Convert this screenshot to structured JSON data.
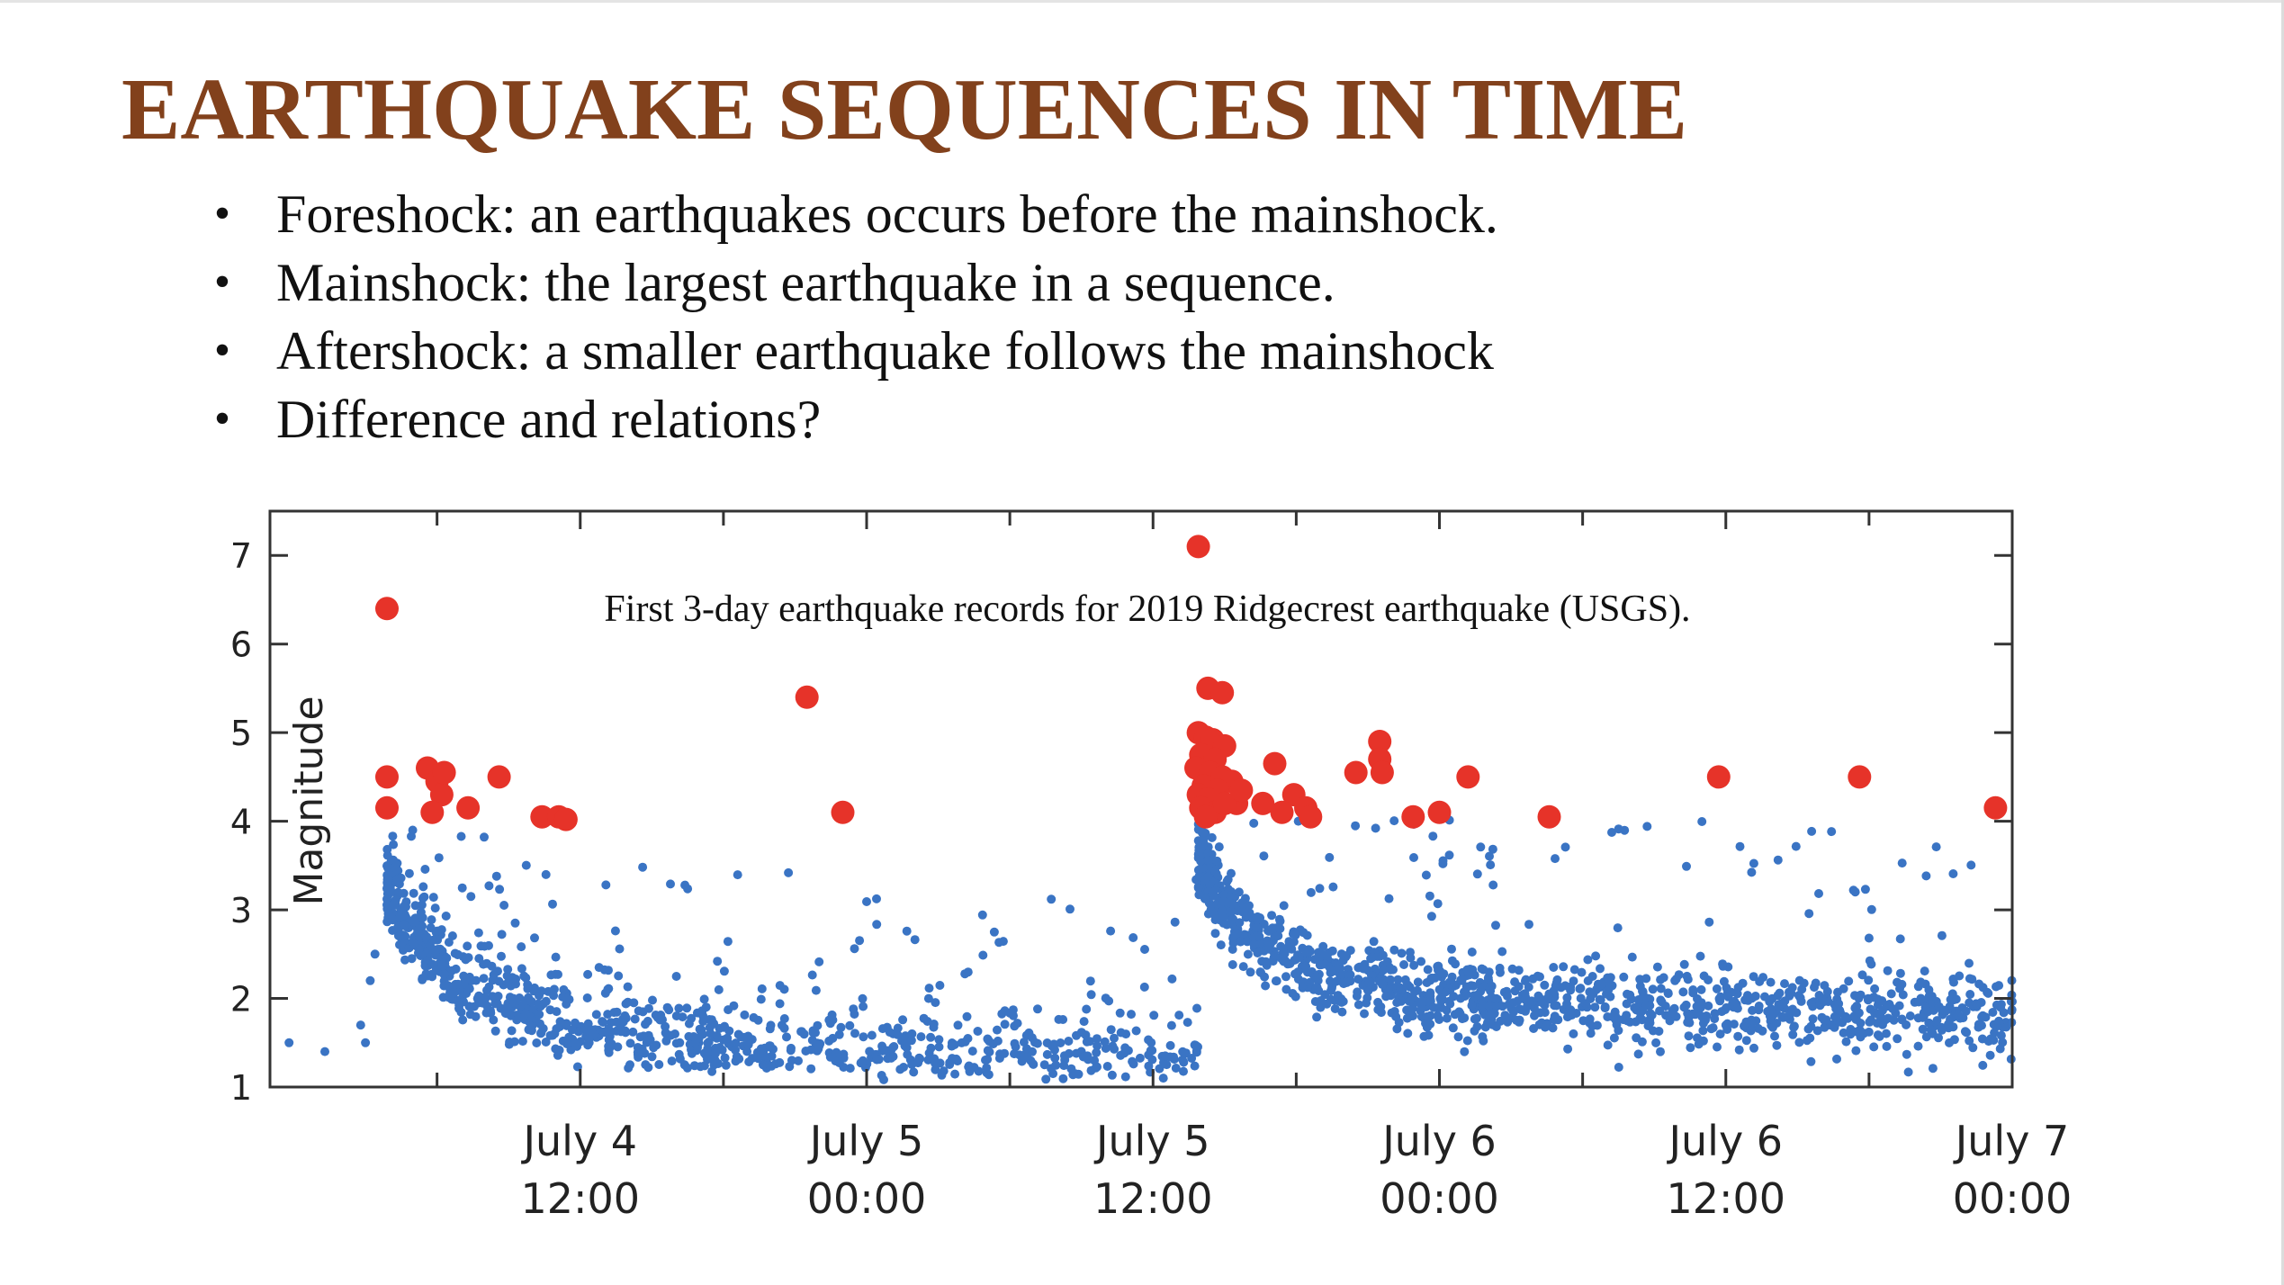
{
  "slide": {
    "title": "EARTHQUAKE SEQUENCES IN TIME",
    "bullets": [
      "Foreshock: an earthquakes occurs before the mainshock.",
      "Mainshock: the largest earthquake in a sequence.",
      "Aftershock: a smaller earthquake follows the mainshock",
      "Difference and relations?"
    ],
    "bullet_symbol": "•"
  },
  "chart_data": {
    "type": "scatter",
    "annotation": "First 3-day earthquake records for 2019 Ridgecrest earthquake (USGS).",
    "xlabel": "",
    "ylabel": "Magnitude",
    "x_unit": "hours after July 4 00:00",
    "xlim": [
      -1,
      72
    ],
    "ylim": [
      1,
      7.5
    ],
    "grid": false,
    "x_ticks": [
      {
        "value": 12,
        "line1": "July 4",
        "line2": "12:00"
      },
      {
        "value": 24,
        "line1": "July 5",
        "line2": "00:00"
      },
      {
        "value": 36,
        "line1": "July 5",
        "line2": "12:00"
      },
      {
        "value": 48,
        "line1": "July 6",
        "line2": "00:00"
      },
      {
        "value": 60,
        "line1": "July 6",
        "line2": "12:00"
      },
      {
        "value": 72,
        "line1": "July 7",
        "line2": "00:00"
      }
    ],
    "x_minor_ticks": [
      6,
      18,
      30,
      42,
      54,
      66
    ],
    "y_ticks": [
      1,
      2,
      3,
      4,
      5,
      6,
      7
    ],
    "colors": {
      "large": "#e63329",
      "small": "#3a74c4"
    },
    "large_events": [
      {
        "t": 3.9,
        "mag": 6.4
      },
      {
        "t": 3.9,
        "mag": 4.5
      },
      {
        "t": 3.9,
        "mag": 4.15
      },
      {
        "t": 5.6,
        "mag": 4.6
      },
      {
        "t": 6.0,
        "mag": 4.45
      },
      {
        "t": 6.2,
        "mag": 4.3
      },
      {
        "t": 5.8,
        "mag": 4.1
      },
      {
        "t": 6.3,
        "mag": 4.55
      },
      {
        "t": 7.3,
        "mag": 4.15
      },
      {
        "t": 8.6,
        "mag": 4.5
      },
      {
        "t": 10.4,
        "mag": 4.05
      },
      {
        "t": 11.1,
        "mag": 4.05
      },
      {
        "t": 11.4,
        "mag": 4.02
      },
      {
        "t": 21.5,
        "mag": 5.4
      },
      {
        "t": 23.0,
        "mag": 4.1
      },
      {
        "t": 37.9,
        "mag": 7.1
      },
      {
        "t": 38.3,
        "mag": 5.5
      },
      {
        "t": 38.9,
        "mag": 5.45
      },
      {
        "t": 37.9,
        "mag": 5.0
      },
      {
        "t": 38.2,
        "mag": 4.95
      },
      {
        "t": 38.5,
        "mag": 4.92
      },
      {
        "t": 39.0,
        "mag": 4.85
      },
      {
        "t": 38.0,
        "mag": 4.75
      },
      {
        "t": 38.6,
        "mag": 4.7
      },
      {
        "t": 37.8,
        "mag": 4.6
      },
      {
        "t": 38.4,
        "mag": 4.55
      },
      {
        "t": 38.9,
        "mag": 4.5
      },
      {
        "t": 39.3,
        "mag": 4.45
      },
      {
        "t": 38.1,
        "mag": 4.4
      },
      {
        "t": 38.7,
        "mag": 4.35
      },
      {
        "t": 37.9,
        "mag": 4.3
      },
      {
        "t": 38.3,
        "mag": 4.25
      },
      {
        "t": 39.5,
        "mag": 4.2
      },
      {
        "t": 38.0,
        "mag": 4.15
      },
      {
        "t": 38.6,
        "mag": 4.1
      },
      {
        "t": 38.2,
        "mag": 4.05
      },
      {
        "t": 39.0,
        "mag": 4.2
      },
      {
        "t": 39.7,
        "mag": 4.35
      },
      {
        "t": 41.1,
        "mag": 4.65
      },
      {
        "t": 41.9,
        "mag": 4.3
      },
      {
        "t": 40.6,
        "mag": 4.2
      },
      {
        "t": 42.4,
        "mag": 4.15
      },
      {
        "t": 41.4,
        "mag": 4.1
      },
      {
        "t": 42.6,
        "mag": 4.05
      },
      {
        "t": 44.5,
        "mag": 4.55
      },
      {
        "t": 45.5,
        "mag": 4.9
      },
      {
        "t": 45.5,
        "mag": 4.7
      },
      {
        "t": 45.6,
        "mag": 4.55
      },
      {
        "t": 46.9,
        "mag": 4.05
      },
      {
        "t": 48.0,
        "mag": 4.1
      },
      {
        "t": 49.2,
        "mag": 4.5
      },
      {
        "t": 52.6,
        "mag": 4.05
      },
      {
        "t": 59.7,
        "mag": 4.5
      },
      {
        "t": 65.6,
        "mag": 4.5
      },
      {
        "t": 71.3,
        "mag": 4.15
      }
    ],
    "small_events_summary": "about 2,200 aftershock/background events with magnitudes 1-4; dense decaying clusters after July 4 ~03:30 and after July 5 ~20:00"
  }
}
